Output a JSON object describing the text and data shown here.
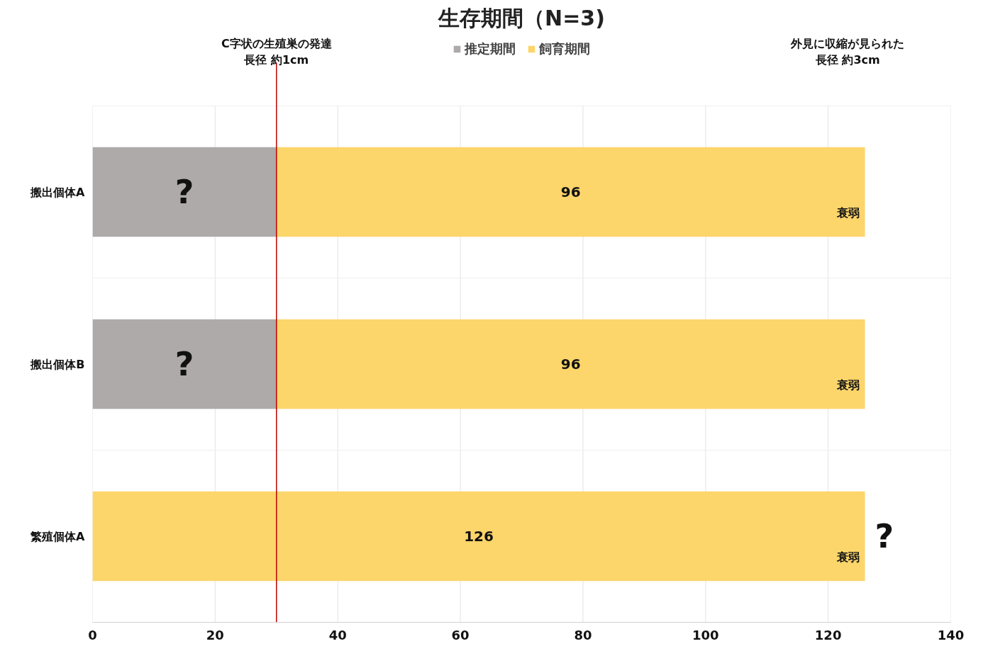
{
  "chart_data": {
    "type": "bar",
    "orientation": "horizontal",
    "stacked": true,
    "title": "生存期間（N=3)",
    "categories": [
      "搬出個体A",
      "搬出個体B",
      "繁殖個体A"
    ],
    "series": [
      {
        "name": "推定期間",
        "color": "#aeaaaa",
        "values": [
          30,
          30,
          null
        ],
        "value_labels": [
          "?",
          "?",
          null
        ]
      },
      {
        "name": "飼育期間",
        "color": "#fcd56b",
        "values": [
          96,
          96,
          126
        ],
        "value_labels": [
          "96",
          "96",
          "126"
        ]
      }
    ],
    "xlim": [
      0,
      140
    ],
    "xticks": [
      0,
      20,
      40,
      60,
      80,
      100,
      120,
      140
    ],
    "grid": true,
    "legend": "top",
    "ref_lines": [
      {
        "axis": "x",
        "value": 30,
        "label": "C字状の生殖巣の発達長径 約1cm",
        "color": "#c00000"
      }
    ],
    "annotations": [
      "衰弱",
      "衰弱",
      "衰弱",
      "外見に収縮が見られた長径 約3cm",
      "?"
    ]
  }
}
